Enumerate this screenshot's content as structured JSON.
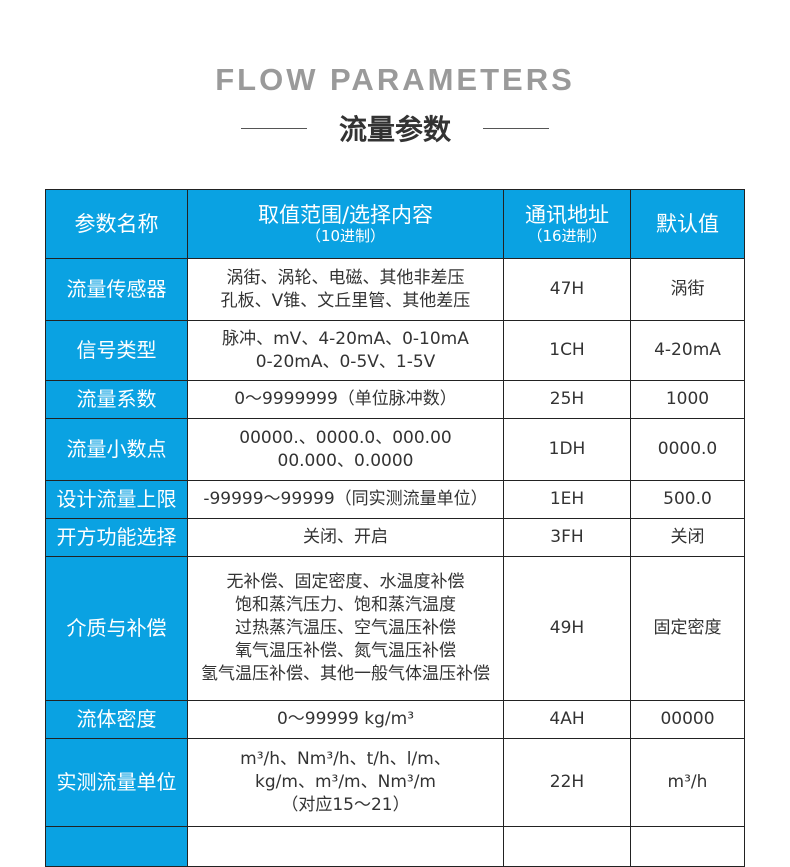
{
  "title_en": "FLOW PARAMETERS",
  "title_cn": "流量参数",
  "table": {
    "headers": [
      {
        "label": "参数名称",
        "sub": ""
      },
      {
        "label": "取值范围/选择内容",
        "sub": "（10进制）"
      },
      {
        "label": "通讯地址",
        "sub": "（16进制）"
      },
      {
        "label": "默认值",
        "sub": ""
      }
    ],
    "rows": [
      {
        "name": "流量传感器",
        "range": [
          "涡街、涡轮、电磁、其他非差压",
          "孔板、V锥、文丘里管、其他差压"
        ],
        "address": "47H",
        "default": "涡街"
      },
      {
        "name": "信号类型",
        "range": [
          "脉冲、mV、4-20mA、0-10mA",
          "0-20mA、0-5V、1-5V"
        ],
        "address": "1CH",
        "default": "4-20mA"
      },
      {
        "name": "流量系数",
        "range": [
          "0～9999999（单位脉冲数）"
        ],
        "address": "25H",
        "default": "1000"
      },
      {
        "name": "流量小数点",
        "range": [
          "00000.、0000.0、000.00",
          "00.000、0.0000"
        ],
        "address": "1DH",
        "default": "0000.0"
      },
      {
        "name": "设计流量上限",
        "range": [
          "-99999～99999（同实测流量单位）"
        ],
        "address": "1EH",
        "default": "500.0"
      },
      {
        "name": "开方功能选择",
        "range": [
          "关闭、开启"
        ],
        "address": "3FH",
        "default": "关闭"
      },
      {
        "name": "介质与补偿",
        "range": [
          "无补偿、固定密度、水温度补偿",
          "饱和蒸汽压力、饱和蒸汽温度",
          "过热蒸汽温压、空气温压补偿",
          "氧气温压补偿、氮气温压补偿",
          "氢气温压补偿、其他一般气体温压补偿"
        ],
        "address": "49H",
        "default": "固定密度"
      },
      {
        "name": "流体密度",
        "range": [
          "0～99999  kg/m³"
        ],
        "address": "4AH",
        "default": "00000"
      },
      {
        "name": "实测流量单位",
        "range": [
          "m³/h、Nm³/h、t/h、l/m、",
          "kg/m、m³/m、Nm³/m",
          "（对应15～21）"
        ],
        "address": "22H",
        "default": "m³/h"
      }
    ]
  },
  "colors": {
    "header_blue": "#0aa2e2"
  }
}
